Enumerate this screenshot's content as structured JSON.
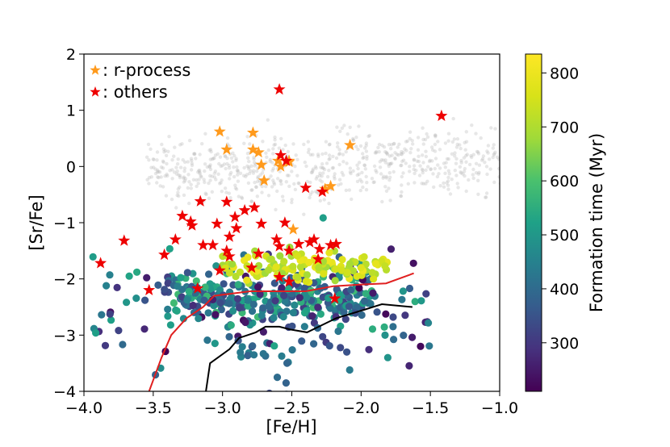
{
  "chart_data": {
    "type": "scatter",
    "xlabel": "[Fe/H]",
    "ylabel": "[Sr/Fe]",
    "xlim": [
      -4.0,
      -1.0
    ],
    "ylim": [
      -4,
      2
    ],
    "xticks": [
      -4.0,
      -3.5,
      -3.0,
      -2.5,
      -2.0,
      -1.5,
      -1.0
    ],
    "xtick_labels": [
      "−4.0",
      "−3.5",
      "−3.0",
      "−2.5",
      "−2.0",
      "−1.5",
      "−1.0"
    ],
    "yticks": [
      -4,
      -3,
      -2,
      -1,
      0,
      1,
      2
    ],
    "ytick_labels": [
      "−4",
      "−3",
      "−2",
      "−1",
      "0",
      "1",
      "2"
    ],
    "legend": {
      "position": "top-left",
      "entries": [
        {
          "label": ": r-process",
          "marker": "star",
          "color": "#ff9a1c"
        },
        {
          "label": ": others",
          "marker": "star",
          "color": "#ee0000"
        }
      ]
    },
    "colorbar": {
      "label": "Formation time (Myr)",
      "range": [
        210,
        835
      ],
      "ticks": [
        300,
        400,
        500,
        600,
        700,
        800
      ],
      "colormap": "viridis"
    },
    "series": [
      {
        "name": "r-process",
        "marker": "star",
        "color": "#ff9a1c",
        "points": [
          [
            -3.02,
            0.62
          ],
          [
            -2.97,
            0.3
          ],
          [
            -2.78,
            0.6
          ],
          [
            -2.78,
            0.3
          ],
          [
            -2.74,
            0.25
          ],
          [
            -2.72,
            0.03
          ],
          [
            -2.7,
            -0.25
          ],
          [
            -2.6,
            0.1
          ],
          [
            -2.58,
            0.0
          ],
          [
            -2.52,
            0.1
          ],
          [
            -2.52,
            0.08
          ],
          [
            -2.08,
            0.38
          ],
          [
            -2.22,
            -0.35
          ],
          [
            -2.26,
            -0.4
          ],
          [
            -2.49,
            -1.12
          ]
        ]
      },
      {
        "name": "others",
        "marker": "star",
        "color": "#ee0000",
        "points": [
          [
            -2.59,
            1.37
          ],
          [
            -1.42,
            0.9
          ],
          [
            -2.58,
            0.2
          ],
          [
            -2.54,
            0.1
          ],
          [
            -2.4,
            -0.38
          ],
          [
            -2.28,
            -0.45
          ],
          [
            -3.16,
            -0.62
          ],
          [
            -3.23,
            -0.98
          ],
          [
            -3.22,
            -1.05
          ],
          [
            -3.29,
            -0.88
          ],
          [
            -2.97,
            -0.63
          ],
          [
            -2.77,
            -0.73
          ],
          [
            -2.91,
            -0.9
          ],
          [
            -3.04,
            -1.02
          ],
          [
            -2.84,
            -0.78
          ],
          [
            -2.72,
            -1.02
          ],
          [
            -2.9,
            -1.1
          ],
          [
            -2.55,
            -1.0
          ],
          [
            -2.95,
            -1.25
          ],
          [
            -3.14,
            -1.4
          ],
          [
            -3.34,
            -1.3
          ],
          [
            -3.42,
            -1.57
          ],
          [
            -3.71,
            -1.32
          ],
          [
            -3.88,
            -1.72
          ],
          [
            -3.07,
            -1.4
          ],
          [
            -2.95,
            -1.6
          ],
          [
            -2.97,
            -1.5
          ],
          [
            -2.74,
            -1.55
          ],
          [
            -2.61,
            -1.3
          ],
          [
            -2.59,
            -1.42
          ],
          [
            -2.52,
            -1.5
          ],
          [
            -2.45,
            -1.38
          ],
          [
            -2.37,
            -1.35
          ],
          [
            -2.34,
            -1.3
          ],
          [
            -2.3,
            -1.47
          ],
          [
            -2.22,
            -1.4
          ],
          [
            -2.18,
            -1.38
          ],
          [
            -2.79,
            -1.8
          ],
          [
            -2.59,
            -1.97
          ],
          [
            -2.52,
            -2.05
          ],
          [
            -3.02,
            -1.85
          ],
          [
            -3.18,
            -2.17
          ],
          [
            -3.53,
            -2.2
          ],
          [
            -2.31,
            -1.65
          ],
          [
            -2.19,
            -2.35
          ]
        ]
      }
    ],
    "curves": [
      {
        "name": "red-line",
        "color": "#e02020",
        "points": [
          [
            -3.53,
            -4.0
          ],
          [
            -3.44,
            -3.4
          ],
          [
            -3.37,
            -3.0
          ],
          [
            -3.26,
            -2.7
          ],
          [
            -3.14,
            -2.5
          ],
          [
            -3.06,
            -2.3
          ],
          [
            -2.8,
            -2.22
          ],
          [
            -2.4,
            -2.22
          ],
          [
            -2.2,
            -2.13
          ],
          [
            -2.0,
            -2.1
          ],
          [
            -1.82,
            -2.08
          ],
          [
            -1.62,
            -1.9
          ]
        ]
      },
      {
        "name": "black-line",
        "color": "#000000",
        "points": [
          [
            -3.12,
            -4.0
          ],
          [
            -3.09,
            -3.5
          ],
          [
            -2.95,
            -3.25
          ],
          [
            -2.88,
            -3.05
          ],
          [
            -2.76,
            -2.95
          ],
          [
            -2.69,
            -2.85
          ],
          [
            -2.59,
            -2.85
          ],
          [
            -2.51,
            -2.9
          ],
          [
            -2.39,
            -2.95
          ],
          [
            -2.18,
            -2.7
          ],
          [
            -1.98,
            -2.55
          ],
          [
            -1.85,
            -2.45
          ],
          [
            -1.63,
            -2.5
          ]
        ]
      }
    ]
  }
}
